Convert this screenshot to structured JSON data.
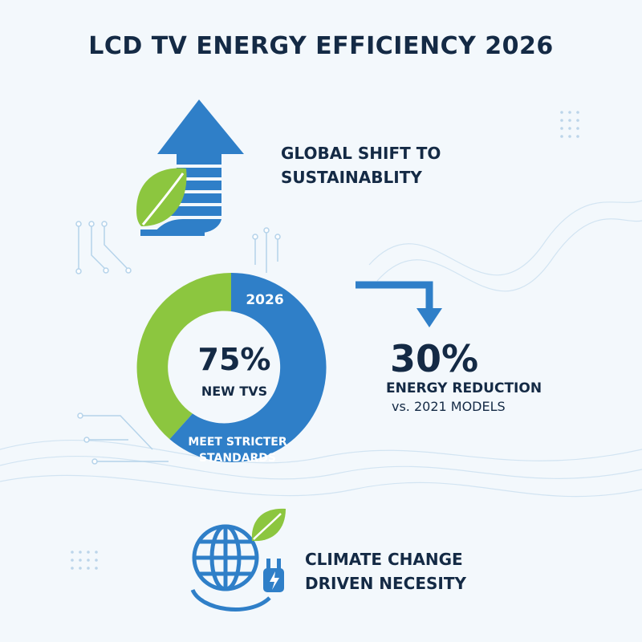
{
  "title": "LCD TV ENERGY EFFICIENCY 2026",
  "shift": {
    "line1": "GLOBAL SHIFT TO",
    "line2": "SUSTAINABLITY"
  },
  "donut": {
    "year": "2026",
    "percent_label": "75%",
    "percent_value": 75,
    "sublabel": "NEW TVS",
    "standards_line1": "MEET STRICTER",
    "standards_line2": "STANDARDS"
  },
  "reduction": {
    "value": "30%",
    "line1": "ENERGY REDUCTION",
    "line2": "vs. 2021 MODELS"
  },
  "climate": {
    "line1": "CLIMATE CHANGE",
    "line2": "DRIVEN NECESITY"
  },
  "icons": [
    "arrow-up-icon",
    "leaf-icon",
    "arrow-down-right-icon",
    "globe-icon",
    "plug-icon"
  ],
  "colors": {
    "blue": "#2f7fc8",
    "green": "#8cc63f",
    "dark_text": "#142a45",
    "background": "#f3f8fc"
  }
}
